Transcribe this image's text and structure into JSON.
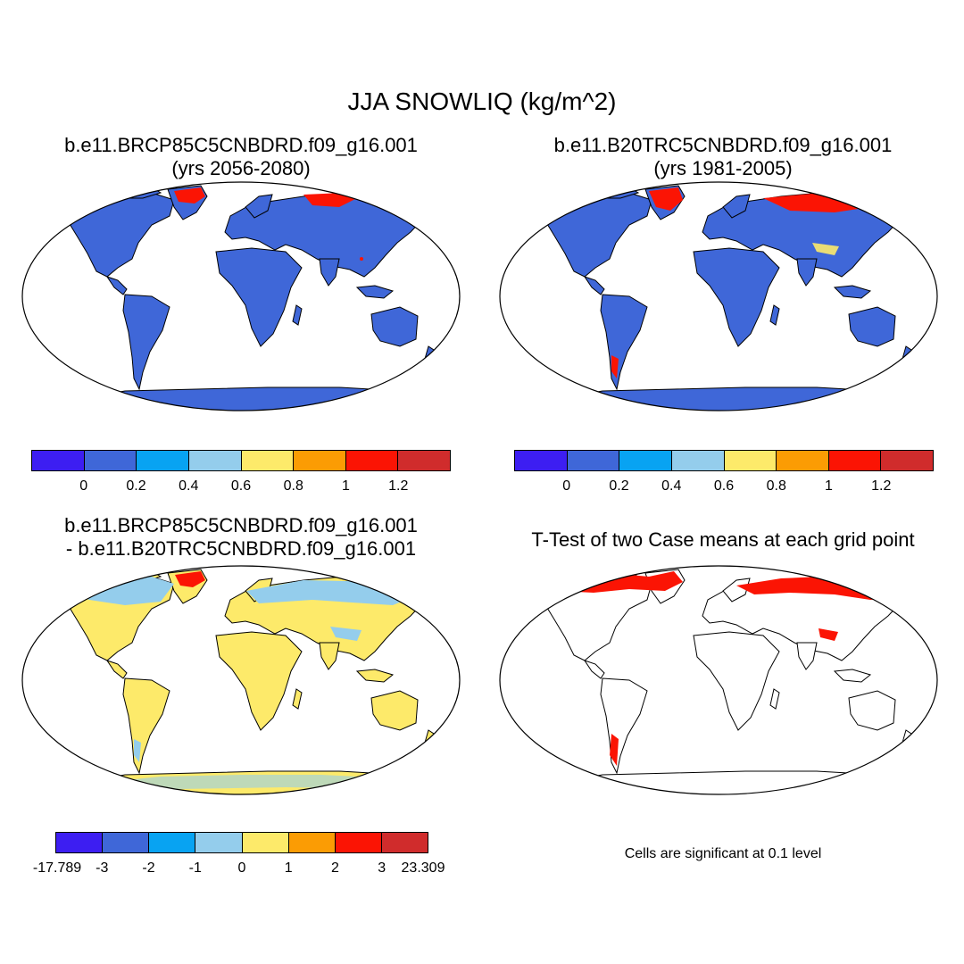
{
  "title": "JJA SNOWLIQ (kg/m^2)",
  "colors": {
    "palette": [
      "#3d1ef2",
      "#3f67d8",
      "#08a3f2",
      "#94cdec",
      "#fdea6a",
      "#fb9c04",
      "#fb1404",
      "#d02c2c"
    ],
    "land_base": "#3f67d8",
    "diff_base": "#fdea6a",
    "ttest": "#fb1404"
  },
  "panels": {
    "top_left": {
      "title_line1": "b.e11.BRCP85C5CNBDRD.f09_g16.001",
      "title_line2": "(yrs 2056-2080)",
      "colorbar_ticks": [
        "0",
        "0.2",
        "0.4",
        "0.6",
        "0.8",
        "1",
        "1.2"
      ]
    },
    "top_right": {
      "title_line1": "b.e11.B20TRC5CNBDRD.f09_g16.001",
      "title_line2": "(yrs 1981-2005)",
      "colorbar_ticks": [
        "0",
        "0.2",
        "0.4",
        "0.6",
        "0.8",
        "1",
        "1.2"
      ]
    },
    "bottom_left": {
      "title_line1": "b.e11.BRCP85C5CNBDRD.f09_g16.001",
      "title_line2": "- b.e11.B20TRC5CNBDRD.f09_g16.001",
      "colorbar_ticks": [
        "-17.789",
        "-3",
        "-2",
        "-1",
        "0",
        "1",
        "2",
        "3",
        "23.309"
      ]
    },
    "bottom_right": {
      "title_line1": "T-Test of two Case means at each grid point",
      "note": "Cells are significant at 0.1 level"
    }
  }
}
